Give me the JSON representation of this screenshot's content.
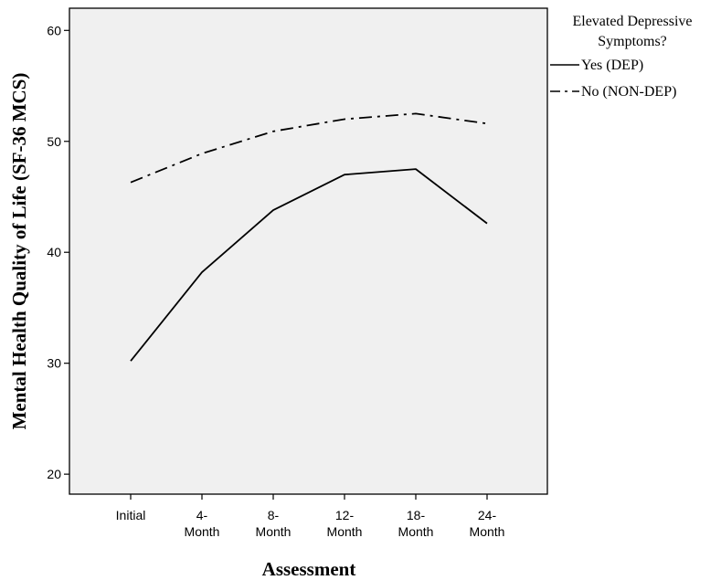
{
  "chart_data": {
    "type": "line",
    "title": "",
    "xlabel": "Assessment",
    "ylabel": "Mental Health Quality of Life (SF-36 MCS)",
    "categories": [
      "Initial",
      "4-Month",
      "8-Month",
      "12-Month",
      "18-Month",
      "24-Month"
    ],
    "category_labels": [
      [
        "Initial"
      ],
      [
        "4-",
        "Month"
      ],
      [
        "8-",
        "Month"
      ],
      [
        "12-",
        "Month"
      ],
      [
        "18-",
        "Month"
      ],
      [
        "24-",
        "Month"
      ]
    ],
    "ylim": [
      18.2,
      62
    ],
    "yticks": [
      20,
      30,
      40,
      50,
      60
    ],
    "grid": false,
    "legend": {
      "title_lines": [
        "Elevated Depressive",
        "Symptoms?"
      ],
      "placement": "right"
    },
    "series": [
      {
        "name": "Yes (DEP)",
        "line_style": "solid",
        "color": "#000000",
        "values": [
          30.2,
          38.2,
          43.8,
          47.0,
          47.5,
          42.6
        ]
      },
      {
        "name": "No (NON-DEP)",
        "line_style": "dash-dot",
        "color": "#000000",
        "values": [
          46.3,
          48.9,
          50.9,
          52.0,
          52.5,
          51.6
        ]
      }
    ],
    "plot_background": "#f0f0f0"
  }
}
